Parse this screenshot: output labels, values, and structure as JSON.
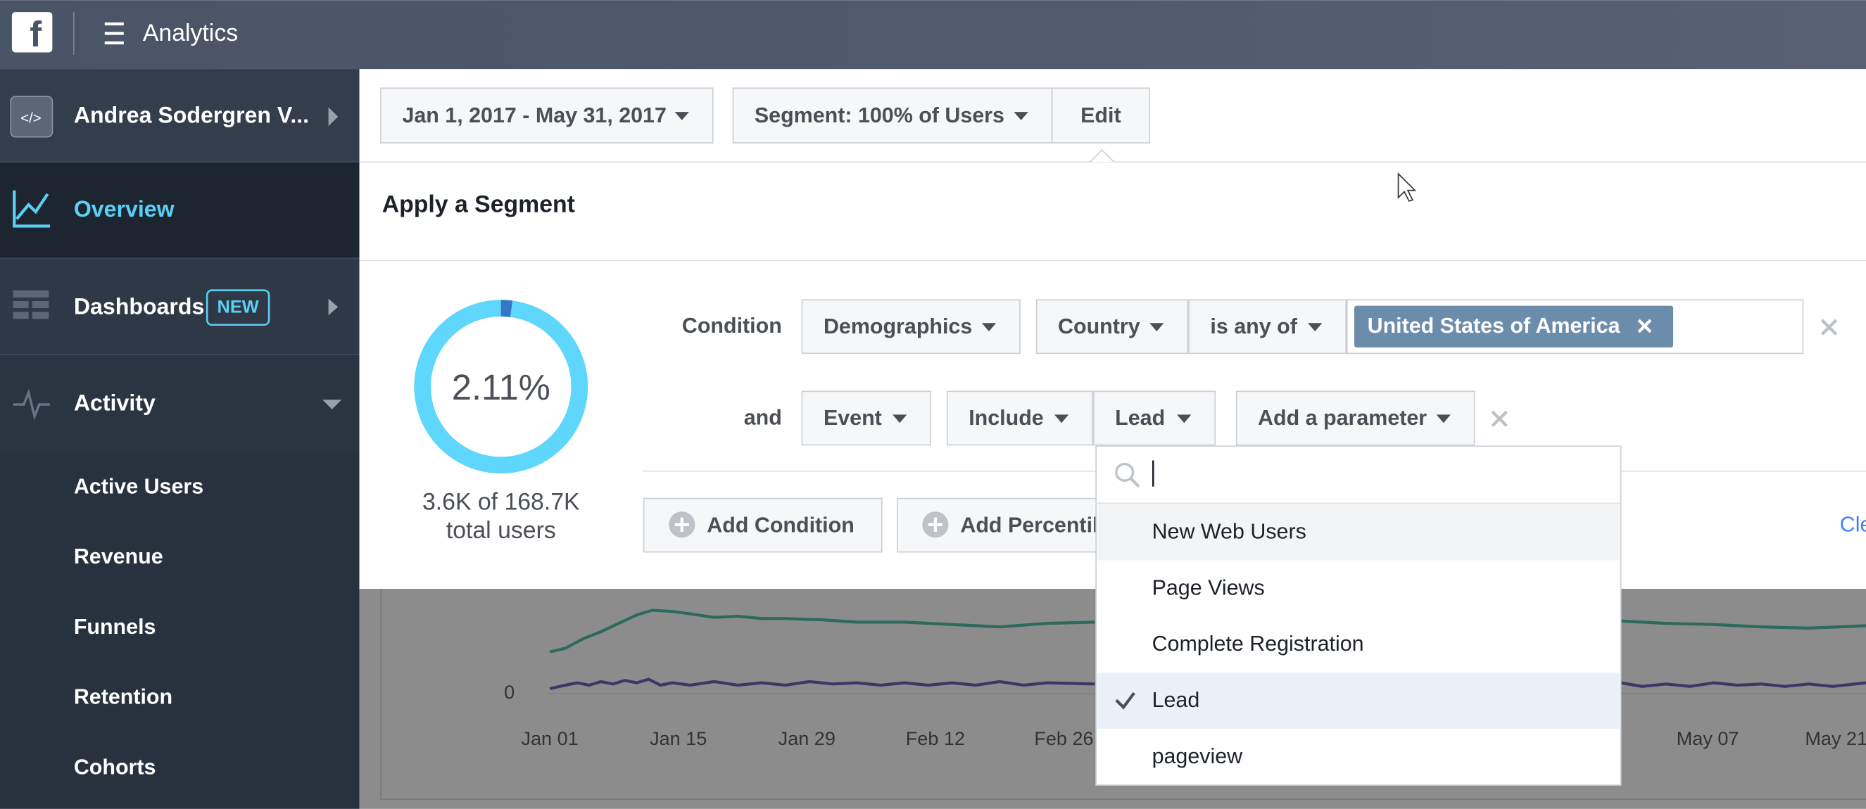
{
  "top_bar": {
    "title": "Analytics"
  },
  "sidebar": {
    "account": "Andrea Sodergren V...",
    "items": [
      {
        "label": "Overview"
      },
      {
        "label": "Dashboards",
        "badge": "NEW"
      },
      {
        "label": "Activity"
      }
    ],
    "sub_items": [
      "Active Users",
      "Revenue",
      "Funnels",
      "Retention",
      "Cohorts"
    ]
  },
  "toolbar": {
    "date_range": "Jan 1, 2017 - May 31, 2017",
    "segment": "Segment: 100% of Users",
    "edit": "Edit"
  },
  "panel": {
    "title": "Apply a Segment",
    "summary": {
      "percent": "2.11%",
      "count": "3.6K of 168.7K",
      "caption": "total users"
    },
    "conditions": [
      {
        "label": "Condition",
        "fields": [
          "Demographics",
          "Country",
          "is any of"
        ],
        "tags": [
          "United States of America"
        ]
      },
      {
        "label": "and",
        "fields": [
          "Event",
          "Include",
          "Lead",
          "Add a parameter"
        ]
      }
    ],
    "buttons": [
      "Add Condition",
      "Add Percentile"
    ],
    "clear": "Clear"
  },
  "dropdown": {
    "options": [
      "New Web Users",
      "Page Views",
      "Complete Registration",
      "Lead",
      "pageview"
    ],
    "selected": 3
  },
  "chart": {
    "y_label": "0",
    "x_labels": [
      "Jan 01",
      "Jan 15",
      "Jan 29",
      "Feb 12",
      "Feb 26",
      "May 07",
      "May 21"
    ]
  }
}
